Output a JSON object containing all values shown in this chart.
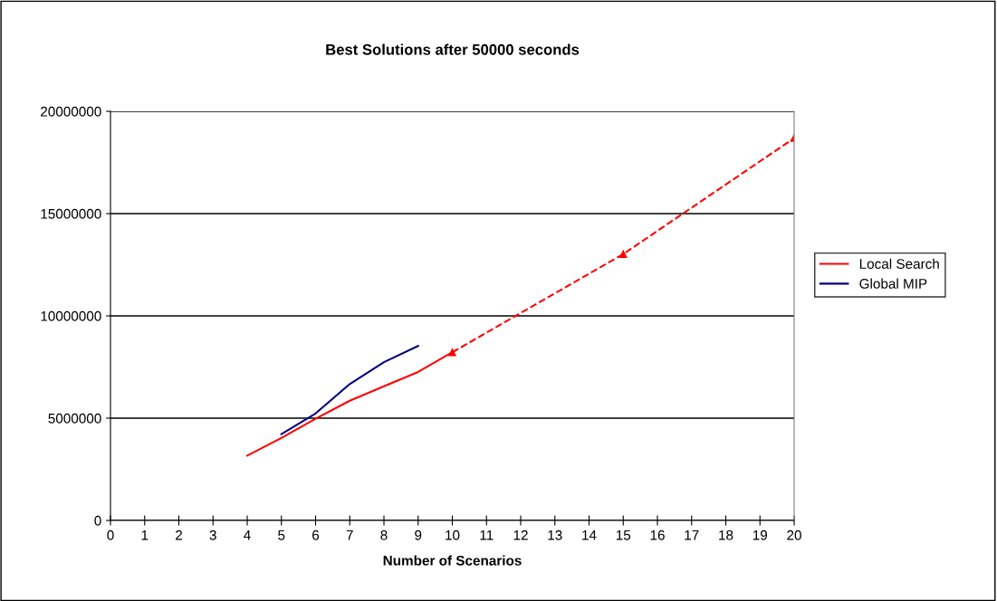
{
  "chart_data": {
    "type": "line",
    "title": "Best Solutions after 50000 seconds",
    "xlabel": "Number of Scenarios",
    "xlim": [
      0,
      20
    ],
    "xticks": [
      0,
      1,
      2,
      3,
      4,
      5,
      6,
      7,
      8,
      9,
      10,
      11,
      12,
      13,
      14,
      15,
      16,
      17,
      18,
      19,
      20
    ],
    "ylim": [
      0,
      20000000
    ],
    "yticks": [
      0,
      5000000,
      10000000,
      15000000,
      20000000
    ],
    "grid": "y",
    "legend": "right",
    "series": [
      {
        "name": "Local Search",
        "color": "#ff0000",
        "x": [
          4,
          5,
          6,
          7,
          8,
          9,
          10
        ],
        "values": [
          3170000,
          4030000,
          4970000,
          5850000,
          6560000,
          7260000,
          8220000
        ],
        "line_style": "solid",
        "marker": "none"
      },
      {
        "name": "Global MIP",
        "color": "#000080",
        "x": [
          5,
          6,
          7,
          8,
          9
        ],
        "values": [
          4220000,
          5230000,
          6670000,
          7740000,
          8530000
        ],
        "line_style": "solid",
        "marker": "none"
      },
      {
        "color": "#ff0000",
        "x": [
          10,
          15,
          20
        ],
        "values": [
          8220000,
          13020000,
          18690000
        ],
        "line_style": "dashed",
        "marker": "triangle"
      }
    ]
  }
}
